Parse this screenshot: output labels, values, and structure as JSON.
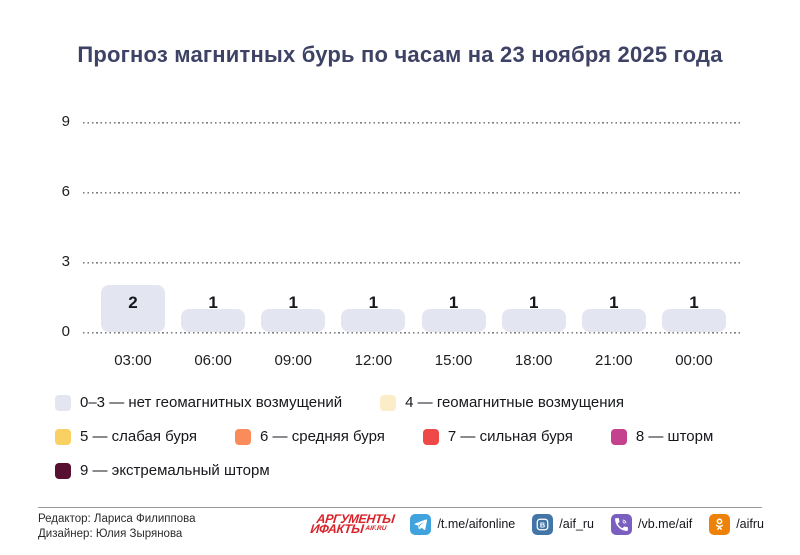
{
  "title": "Прогноз магнитных бурь по часам на 23 ноября 2025 года",
  "chart_data": {
    "type": "bar",
    "title": "Прогноз магнитных бурь по часам на 23 ноября 2025 года",
    "categories": [
      "03:00",
      "06:00",
      "09:00",
      "12:00",
      "15:00",
      "18:00",
      "21:00",
      "00:00"
    ],
    "values": [
      2,
      1,
      1,
      1,
      1,
      1,
      1,
      1
    ],
    "xlabel": "",
    "ylabel": "",
    "ylim": [
      0,
      9
    ],
    "yticks": [
      0,
      3,
      6,
      9
    ],
    "grid": "horizontal-dotted",
    "bar_color": "#e3e5f0",
    "value_labels": [
      "2",
      "1",
      "1",
      "1",
      "1",
      "1",
      "1",
      "1"
    ],
    "legend_position": "bottom"
  },
  "legend": {
    "rows": [
      [
        {
          "label": "0–3 — нет геомагнитных возмущений",
          "color": "#e3e5f0"
        },
        {
          "label": "4 — геомагнитные возмущения",
          "color": "#faedc8"
        }
      ],
      [
        {
          "label": "5 — слабая буря",
          "color": "#f8d162"
        },
        {
          "label": "6 — средняя буря",
          "color": "#fa8b5b"
        },
        {
          "label": "7 — сильная буря",
          "color": "#ef4848"
        },
        {
          "label": "8 — шторм",
          "color": "#c4418e"
        }
      ],
      [
        {
          "label": "9 — экстремальный шторм",
          "color": "#571031"
        }
      ]
    ]
  },
  "footer": {
    "credits": [
      "Редактор: Лариса Филиппова",
      "Дизайнер: Юлия Зырянова"
    ],
    "logo": {
      "line1": "АРГУМЕНТЫ",
      "line2": "ИФАКТЫ",
      "suffix": "AIF.RU",
      "color": "#d8232a"
    },
    "socials": [
      {
        "icon": "telegram",
        "label": "/t.me/aifonline",
        "color": "#41a3dd"
      },
      {
        "icon": "vk",
        "label": "/aif_ru",
        "color": "#4376a6"
      },
      {
        "icon": "viber",
        "label": "/vb.me/aif",
        "color": "#7b5fc0"
      },
      {
        "icon": "ok",
        "label": "/aifru",
        "color": "#ee8208"
      }
    ]
  }
}
